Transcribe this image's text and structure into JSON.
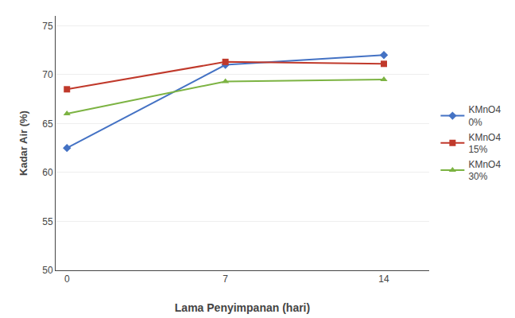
{
  "chart_data": {
    "type": "line",
    "x": [
      0,
      7,
      14
    ],
    "series": [
      {
        "name": "KMnO4\n0%",
        "color": "#4472C4",
        "marker": "diamond",
        "values": [
          62.5,
          71.0,
          72.0
        ]
      },
      {
        "name": "KMnO4\n15%",
        "color": "#C0392B",
        "marker": "square",
        "values": [
          68.5,
          71.3,
          71.1
        ]
      },
      {
        "name": "KMnO4\n30%",
        "color": "#7CB342",
        "marker": "triangle-up",
        "values": [
          66.0,
          69.3,
          69.5
        ]
      }
    ],
    "xlabel": "Lama Penyimpanan (hari)",
    "ylabel": "Kadar Air (%)",
    "xlim": [
      -0.5,
      16
    ],
    "xticks": [
      0,
      7,
      14
    ],
    "ylim": [
      50,
      76
    ],
    "yticks": [
      50,
      55,
      60,
      65,
      70,
      75
    ],
    "grid": "y",
    "legend": "right"
  }
}
